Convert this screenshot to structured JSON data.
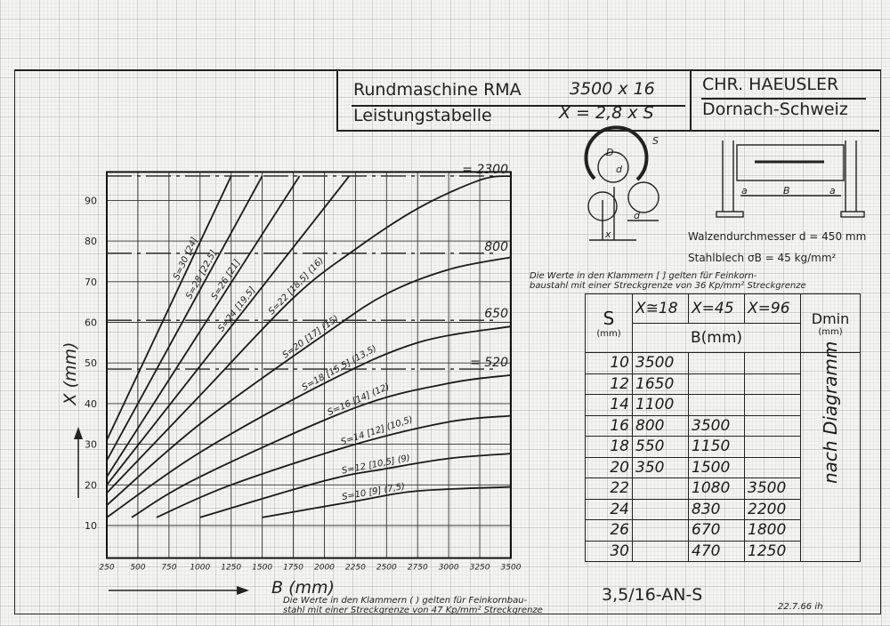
{
  "header": {
    "machine": "Rundmaschine  RMA",
    "model": "3500 x  16",
    "subtitle": "Leistungstabelle",
    "formula": "X = 2,8 x S",
    "company": "CHR. HAEUSLER",
    "location": "Dornach-Schweiz"
  },
  "diagram": {
    "labels": {
      "D": "D",
      "d": "d",
      "S": "S",
      "x": "x",
      "a": "a",
      "B": "B"
    },
    "roll_diameter": "Walzendurchmesser  d = 450 mm",
    "steel": "Stahlblech        σB = 45 kg/mm²"
  },
  "notes": {
    "square_brackets": "Die Werte in den Klammern [ ] gelten für Feinkorn-",
    "square_brackets_2": "baustahl mit einer Streckgrenze von 36 Kp/mm² Streckgrenze",
    "round_brackets": "Die Werte in den Klammern (  ) gelten für Feinkornbau-",
    "round_brackets_2": "stahl mit einer Streckgrenze von 47 Kp/mm² Streckgrenze",
    "doc_code": "3,5/16-AN-S",
    "date": "22.7.66 ih"
  },
  "table": {
    "col_s": "S",
    "col_s_unit": "(mm)",
    "col_x": [
      "X≅18",
      "X=45",
      "X=96"
    ],
    "b_header": "B(mm)",
    "col_dmin": "Dmin",
    "col_dmin_unit": "(mm)",
    "dmin_note": "nach Diagramm",
    "rows": [
      {
        "s": "10",
        "x18": "3500",
        "x45": "",
        "x96": ""
      },
      {
        "s": "12",
        "x18": "1650",
        "x45": "",
        "x96": ""
      },
      {
        "s": "14",
        "x18": "1100",
        "x45": "",
        "x96": ""
      },
      {
        "s": "16",
        "x18": "800",
        "x45": "3500",
        "x96": ""
      },
      {
        "s": "18",
        "x18": "550",
        "x45": "1150",
        "x96": ""
      },
      {
        "s": "20",
        "x18": "350",
        "x45": "1500",
        "x96": ""
      },
      {
        "s": "22",
        "x18": "",
        "x45": "1080",
        "x96": "3500"
      },
      {
        "s": "24",
        "x18": "",
        "x45": "830",
        "x96": "2200"
      },
      {
        "s": "26",
        "x18": "",
        "x45": "670",
        "x96": "1800"
      },
      {
        "s": "30",
        "x18": "",
        "x45": "470",
        "x96": "1250"
      }
    ]
  },
  "chart_data": {
    "type": "line",
    "xlabel": "B (mm)",
    "ylabel": "X (mm)",
    "xlim": [
      250,
      3500
    ],
    "ylim": [
      2,
      97
    ],
    "xticks": [
      "250",
      "500",
      "750",
      "1000",
      "1250",
      "1500",
      "1750",
      "2000",
      "2250",
      "2500",
      "2750",
      "3000",
      "3250",
      "3500"
    ],
    "yticks": [
      "10",
      "20",
      "30",
      "40",
      "50",
      "60",
      "70",
      "80",
      "90"
    ],
    "grid": true,
    "line_color": "#1a1a1a",
    "series": [
      {
        "name": "S=10  [9]  (7,5)",
        "points": [
          [
            1500,
            12
          ],
          [
            2250,
            16
          ],
          [
            2750,
            18.5
          ],
          [
            3500,
            19.5
          ]
        ]
      },
      {
        "name": "S=12  [10,5]  (9)",
        "points": [
          [
            1000,
            12
          ],
          [
            2000,
            21
          ],
          [
            2500,
            24
          ],
          [
            3000,
            26.5
          ],
          [
            3500,
            27.7
          ]
        ]
      },
      {
        "name": "S=14  [12]  (10,5)",
        "points": [
          [
            650,
            12
          ],
          [
            1250,
            20
          ],
          [
            2250,
            30
          ],
          [
            3000,
            35.5
          ],
          [
            3500,
            37
          ]
        ]
      },
      {
        "name": "S=16  [14]  (12)",
        "points": [
          [
            450,
            12
          ],
          [
            1000,
            22
          ],
          [
            2250,
            39
          ],
          [
            3000,
            45
          ],
          [
            3500,
            47
          ]
        ]
      },
      {
        "name": "S=18  [15,5]  (13,5)",
        "points": [
          [
            250,
            12
          ],
          [
            1000,
            28
          ],
          [
            2000,
            45
          ],
          [
            2750,
            55
          ],
          [
            3500,
            59
          ]
        ]
      },
      {
        "name": "S=20  [17]  (15)",
        "points": [
          [
            250,
            15
          ],
          [
            1000,
            35
          ],
          [
            2000,
            57
          ],
          [
            2500,
            67
          ],
          [
            3000,
            73
          ],
          [
            3500,
            76
          ]
        ]
      },
      {
        "name": "S=22  [18,5]  (16)",
        "points": [
          [
            250,
            18
          ],
          [
            1000,
            42
          ],
          [
            1750,
            66
          ],
          [
            2250,
            78
          ],
          [
            2750,
            88
          ],
          [
            3250,
            95
          ],
          [
            3500,
            96
          ]
        ]
      },
      {
        "name": "S=24  [19,5]",
        "points": [
          [
            250,
            20
          ],
          [
            2200,
            96
          ]
        ]
      },
      {
        "name": "S=26  [21]",
        "points": [
          [
            250,
            22
          ],
          [
            1800,
            96
          ]
        ]
      },
      {
        "name": "S=28  [22,5]",
        "points": [
          [
            250,
            26
          ],
          [
            1500,
            96
          ]
        ]
      },
      {
        "name": "S=30  [24]",
        "points": [
          [
            250,
            31
          ],
          [
            1250,
            96
          ]
        ]
      }
    ],
    "reference_lines": [
      {
        "label": "= 2300",
        "x_value": 96
      },
      {
        "label": "800",
        "x_value": 77
      },
      {
        "label": "650",
        "x_value": 60.5
      },
      {
        "label": "= 520",
        "x_value": 48.5
      }
    ]
  }
}
